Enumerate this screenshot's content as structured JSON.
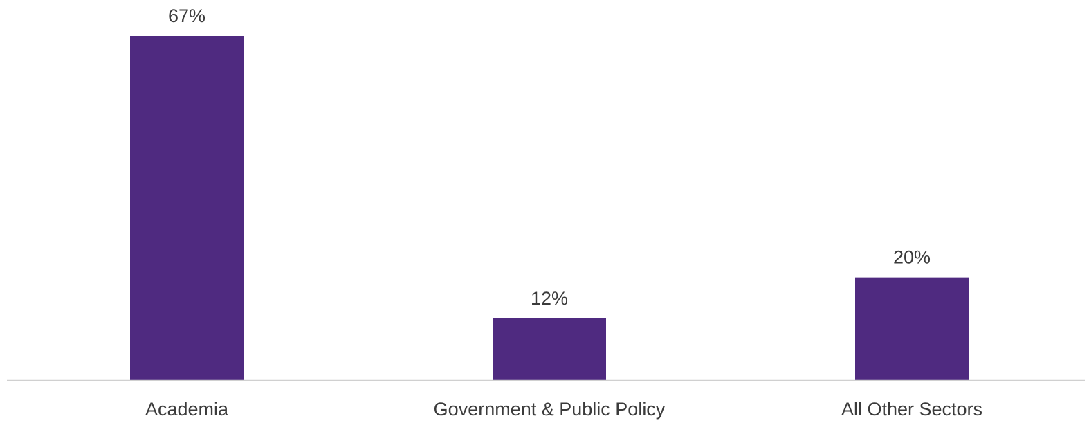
{
  "chart_data": {
    "type": "bar",
    "categories": [
      "Academia",
      "Government & Public Policy",
      "All Other Sectors"
    ],
    "values": [
      67,
      12,
      20
    ],
    "data_labels": [
      "67%",
      "12%",
      "20%"
    ],
    "title": "",
    "xlabel": "",
    "ylabel": "",
    "ylim": [
      0,
      67
    ],
    "grid": false,
    "legend": "none",
    "colors": {
      "bar": "#4f2a80",
      "axis": "#d0d0d0",
      "text": "#3b3b3b"
    }
  }
}
